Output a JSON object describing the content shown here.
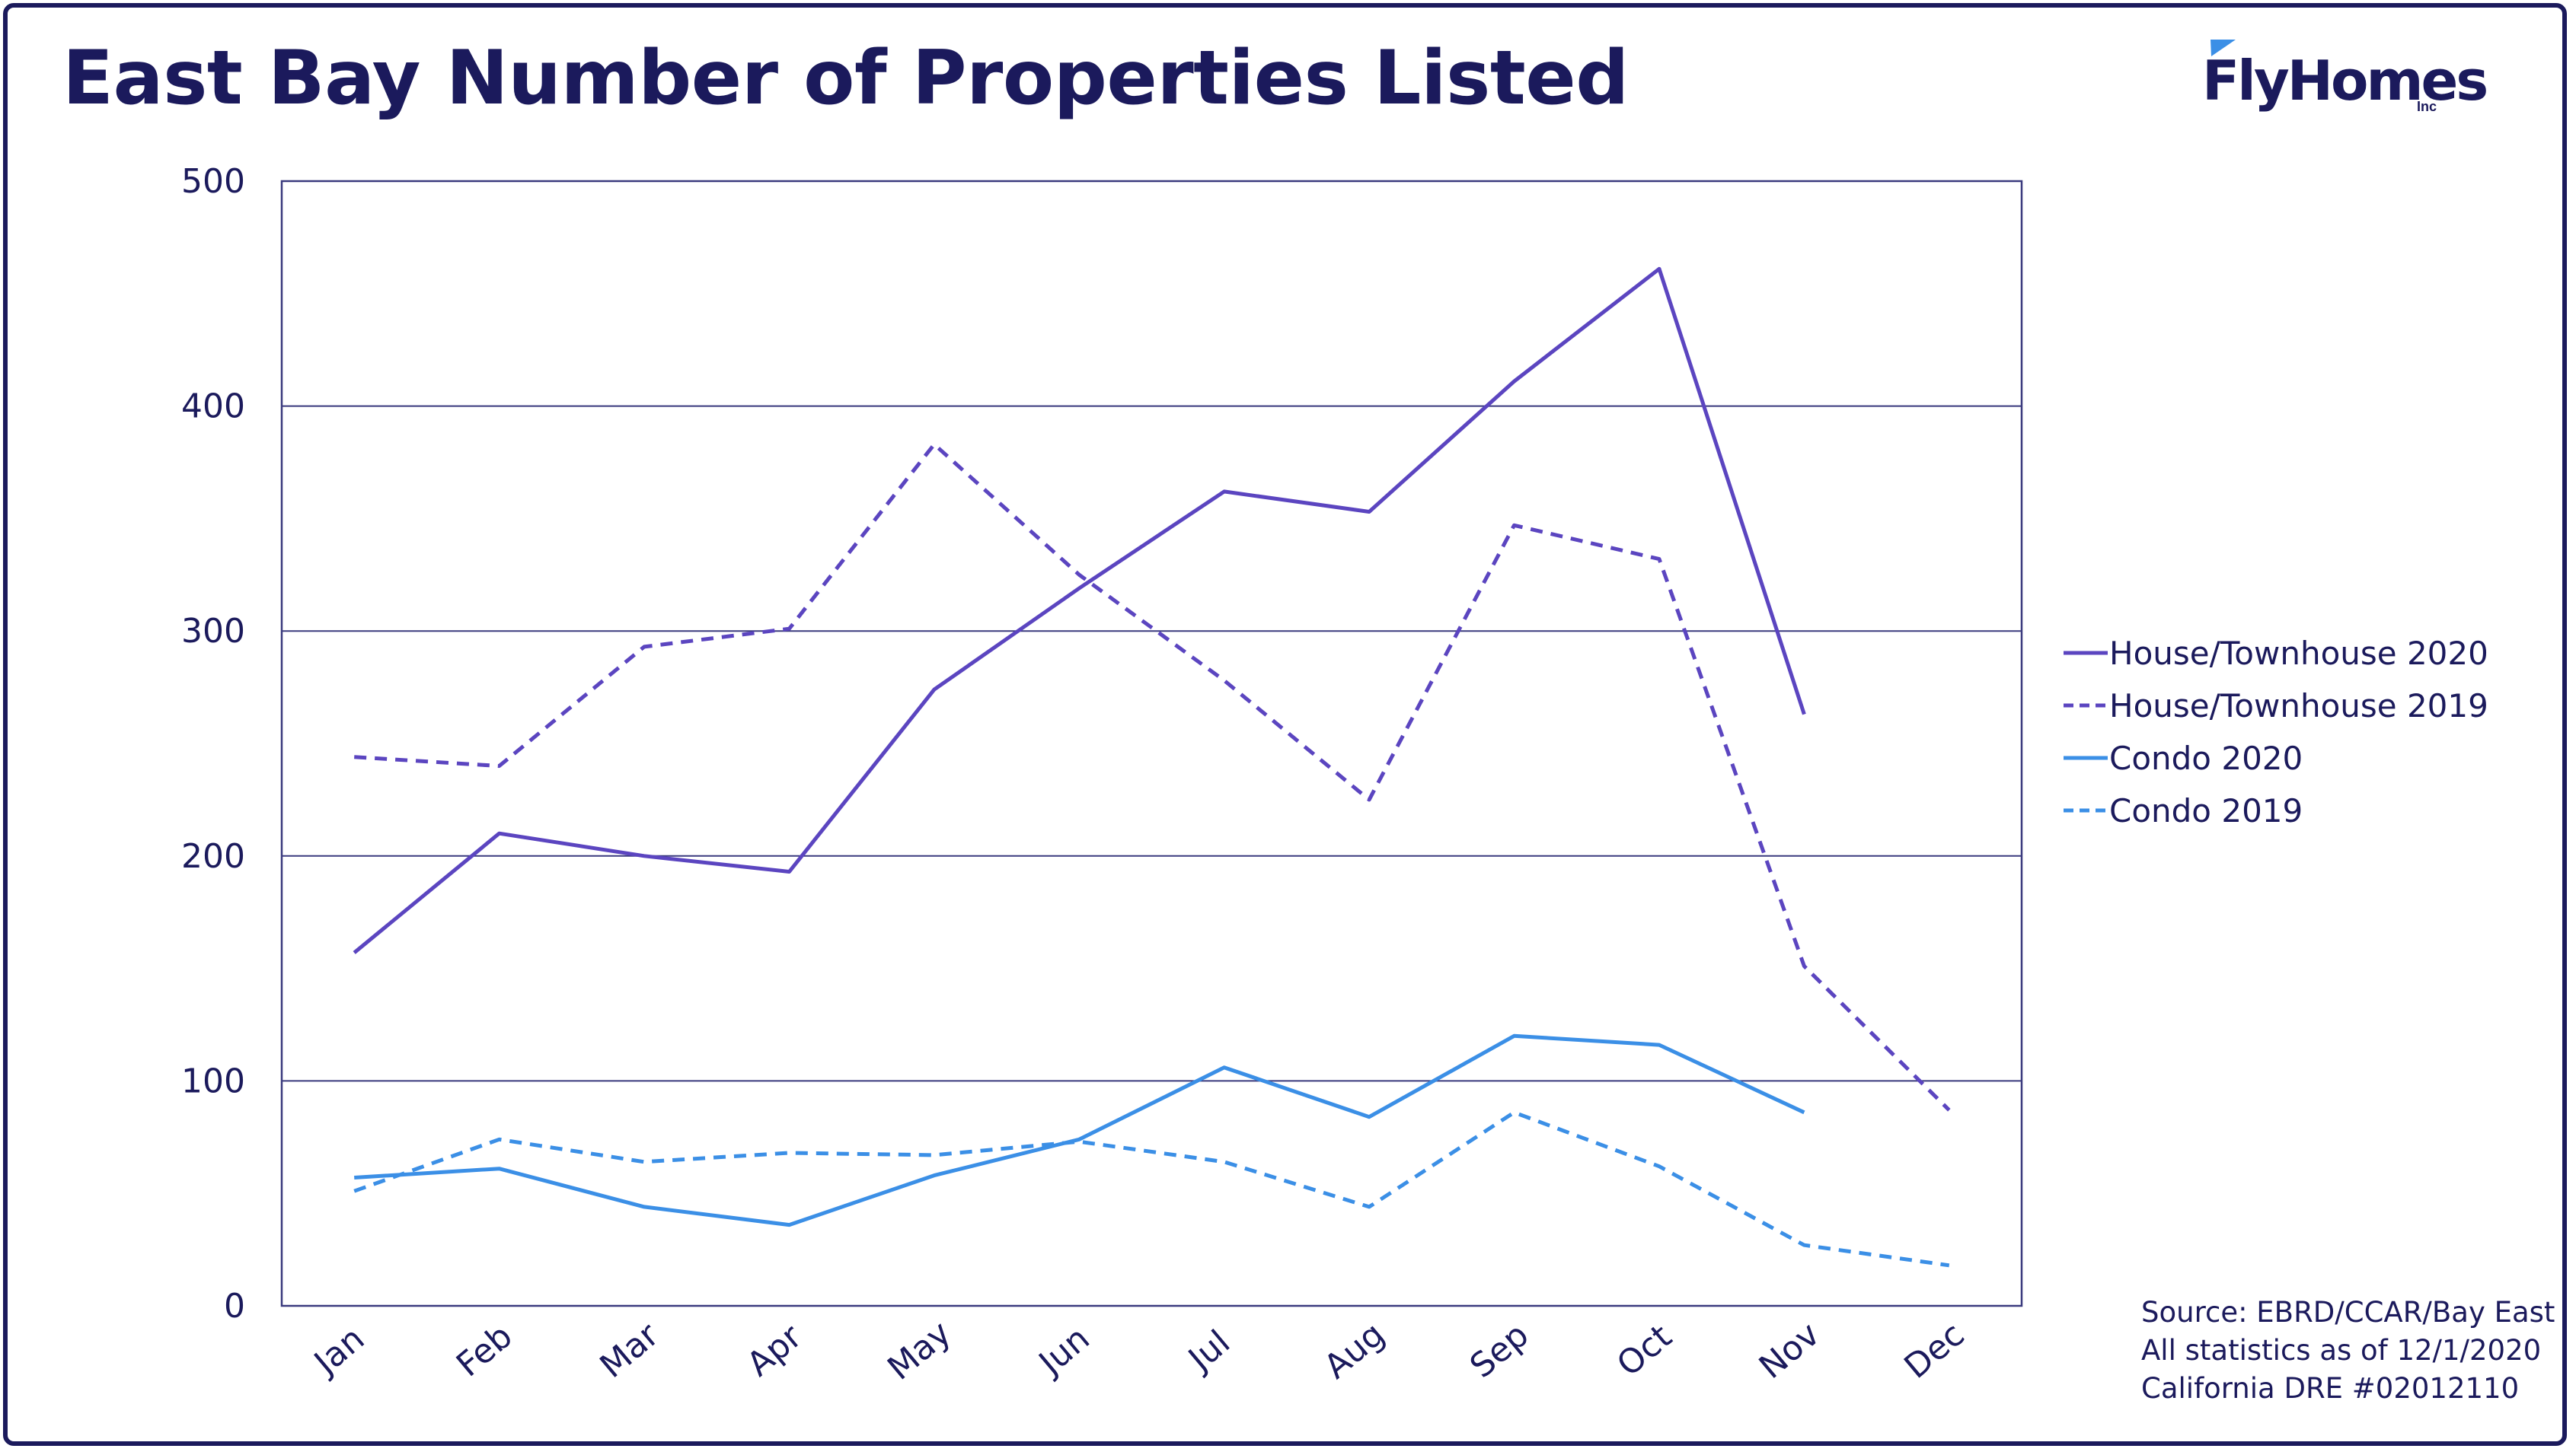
{
  "title": "East Bay Number of Properties Listed",
  "logo": {
    "text": "FlyHomes",
    "suffix": "Inc",
    "icon": "flag-icon"
  },
  "colors": {
    "frame": "#1b1a5c",
    "grid": "#3a3a7e",
    "text": "#1b1a5c",
    "house": "#5b45c0",
    "condo": "#3b8fe6"
  },
  "chart_data": {
    "type": "line",
    "title": "East Bay Number of Properties Listed",
    "xlabel": "",
    "ylabel": "",
    "ylim": [
      0,
      500
    ],
    "yticks": [
      0,
      100,
      200,
      300,
      400,
      500
    ],
    "grid": true,
    "legend_position": "right",
    "categories": [
      "Jan",
      "Feb",
      "Mar",
      "Apr",
      "May",
      "Jun",
      "Jul",
      "Aug",
      "Sep",
      "Oct",
      "Nov",
      "Dec"
    ],
    "series": [
      {
        "name": "House/Townhouse 2020",
        "color": "#5b45c0",
        "dash": "solid",
        "values": [
          157,
          210,
          200,
          193,
          274,
          319,
          362,
          353,
          411,
          461,
          263,
          null
        ]
      },
      {
        "name": "House/Townhouse 2019",
        "color": "#5b45c0",
        "dash": "dashed",
        "values": [
          244,
          240,
          293,
          301,
          383,
          325,
          278,
          225,
          347,
          332,
          151,
          87
        ]
      },
      {
        "name": "Condo 2020",
        "color": "#3b8fe6",
        "dash": "solid",
        "values": [
          57,
          61,
          44,
          36,
          58,
          74,
          106,
          84,
          120,
          116,
          86,
          null
        ]
      },
      {
        "name": "Condo 2019",
        "color": "#3b8fe6",
        "dash": "dashed",
        "values": [
          51,
          74,
          64,
          68,
          67,
          73,
          64,
          44,
          86,
          62,
          27,
          18
        ]
      }
    ]
  },
  "source_lines": [
    "Source: EBRD/CCAR/Bay East",
    "All statistics as of 12/1/2020",
    "California DRE #02012110"
  ]
}
